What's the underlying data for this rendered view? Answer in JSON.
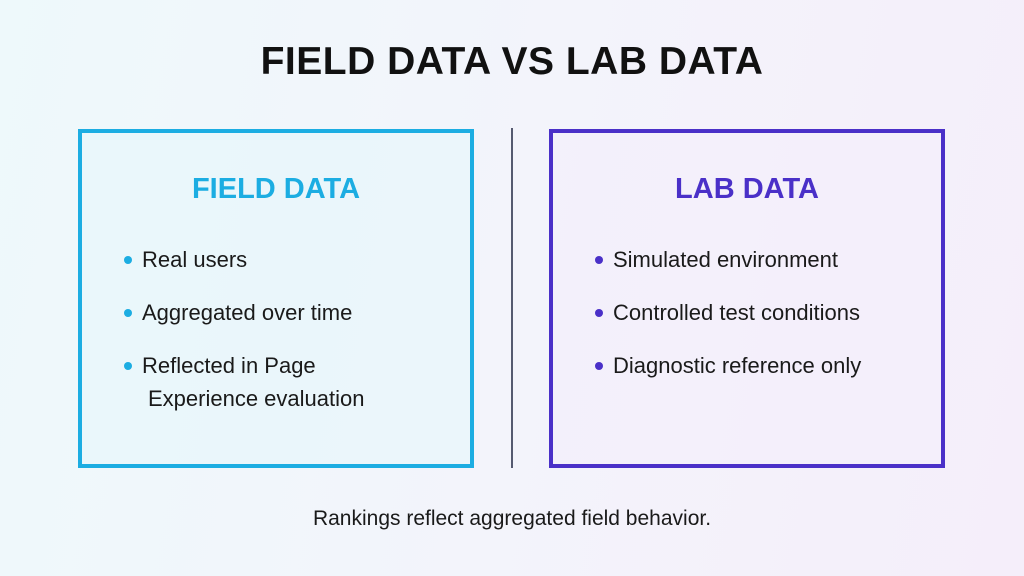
{
  "title": "FIELD DATA VS LAB DATA",
  "colors": {
    "field": "#1cade2",
    "lab": "#4a30c8"
  },
  "field": {
    "heading": "FIELD DATA",
    "items": [
      "Real users",
      "Aggregated over time",
      "Reflected in Page",
      "Experience evaluation"
    ]
  },
  "lab": {
    "heading": "LAB DATA",
    "items": [
      "Simulated environment",
      "Controlled test conditions",
      "Diagnostic reference only"
    ]
  },
  "footer": "Rankings reflect aggregated field behavior."
}
